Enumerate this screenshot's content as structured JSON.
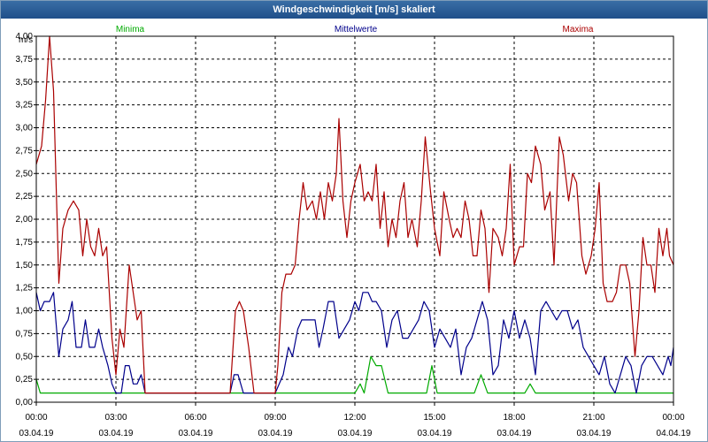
{
  "window": {
    "title": "Windgeschwindigkeit [m/s] skaliert"
  },
  "chart_data": {
    "type": "line",
    "title": "Windgeschwindigkeit [m/s] skaliert",
    "ylabel": "m/s",
    "ylim": [
      0,
      4
    ],
    "xlim": [
      0,
      24
    ],
    "grid": true,
    "yticks": [
      "0,00",
      "0,25",
      "0,50",
      "0,75",
      "1,00",
      "1,25",
      "1,50",
      "1,75",
      "2,00",
      "2,25",
      "2,50",
      "2,75",
      "3,00",
      "3,25",
      "3,50",
      "3,75",
      "4,00"
    ],
    "xticks": [
      {
        "time": "00:00",
        "date": "03.04.19"
      },
      {
        "time": "03:00",
        "date": "03.04.19"
      },
      {
        "time": "06:00",
        "date": "03.04.19"
      },
      {
        "time": "09:00",
        "date": "03.04.19"
      },
      {
        "time": "12:00",
        "date": "03.04.19"
      },
      {
        "time": "15:00",
        "date": "03.04.19"
      },
      {
        "time": "18:00",
        "date": "03.04.19"
      },
      {
        "time": "21:00",
        "date": "03.04.19"
      },
      {
        "time": "00:00",
        "date": "04.04.19"
      }
    ],
    "series": [
      {
        "name": "Minima",
        "color": "#00aa00",
        "points": [
          [
            0,
            0.25
          ],
          [
            0.15,
            0.1
          ],
          [
            12,
            0.1
          ],
          [
            12.2,
            0.2
          ],
          [
            12.35,
            0.1
          ],
          [
            12.6,
            0.5
          ],
          [
            12.8,
            0.4
          ],
          [
            13.0,
            0.4
          ],
          [
            13.25,
            0.1
          ],
          [
            14.7,
            0.1
          ],
          [
            14.9,
            0.4
          ],
          [
            15.1,
            0.1
          ],
          [
            16.5,
            0.1
          ],
          [
            16.75,
            0.3
          ],
          [
            17.0,
            0.1
          ],
          [
            18.4,
            0.1
          ],
          [
            18.6,
            0.2
          ],
          [
            18.8,
            0.1
          ],
          [
            24,
            0.1
          ]
        ]
      },
      {
        "name": "Mittelwerte",
        "color": "#00008b",
        "points": [
          [
            0,
            1.2
          ],
          [
            0.15,
            1.0
          ],
          [
            0.3,
            1.1
          ],
          [
            0.5,
            1.1
          ],
          [
            0.65,
            1.2
          ],
          [
            0.85,
            0.5
          ],
          [
            1.0,
            0.8
          ],
          [
            1.2,
            0.9
          ],
          [
            1.35,
            1.1
          ],
          [
            1.5,
            0.6
          ],
          [
            1.7,
            0.6
          ],
          [
            1.85,
            0.9
          ],
          [
            2.0,
            0.6
          ],
          [
            2.2,
            0.6
          ],
          [
            2.35,
            0.8
          ],
          [
            2.5,
            0.6
          ],
          [
            2.7,
            0.4
          ],
          [
            2.85,
            0.2
          ],
          [
            3.0,
            0.1
          ],
          [
            3.2,
            0.1
          ],
          [
            3.35,
            0.4
          ],
          [
            3.5,
            0.4
          ],
          [
            3.65,
            0.2
          ],
          [
            3.8,
            0.2
          ],
          [
            3.95,
            0.3
          ],
          [
            4.1,
            0.1
          ],
          [
            7.3,
            0.1
          ],
          [
            7.45,
            0.3
          ],
          [
            7.6,
            0.3
          ],
          [
            7.8,
            0.1
          ],
          [
            9.0,
            0.1
          ],
          [
            9.3,
            0.3
          ],
          [
            9.5,
            0.6
          ],
          [
            9.65,
            0.5
          ],
          [
            9.85,
            0.8
          ],
          [
            10.0,
            0.9
          ],
          [
            10.5,
            0.9
          ],
          [
            10.65,
            0.6
          ],
          [
            10.8,
            0.8
          ],
          [
            11.0,
            1.1
          ],
          [
            11.2,
            1.1
          ],
          [
            11.4,
            0.7
          ],
          [
            11.6,
            0.8
          ],
          [
            11.8,
            0.9
          ],
          [
            12.0,
            1.1
          ],
          [
            12.15,
            1.0
          ],
          [
            12.3,
            1.2
          ],
          [
            12.5,
            1.2
          ],
          [
            12.65,
            1.1
          ],
          [
            12.8,
            1.1
          ],
          [
            13.0,
            1.0
          ],
          [
            13.2,
            0.6
          ],
          [
            13.4,
            0.9
          ],
          [
            13.6,
            1.0
          ],
          [
            13.8,
            0.7
          ],
          [
            14.0,
            0.7
          ],
          [
            14.2,
            0.8
          ],
          [
            14.4,
            0.9
          ],
          [
            14.6,
            1.1
          ],
          [
            14.8,
            1.0
          ],
          [
            15.0,
            0.6
          ],
          [
            15.2,
            0.8
          ],
          [
            15.4,
            0.7
          ],
          [
            15.6,
            0.6
          ],
          [
            15.8,
            0.8
          ],
          [
            16.0,
            0.3
          ],
          [
            16.2,
            0.6
          ],
          [
            16.4,
            0.7
          ],
          [
            16.6,
            0.9
          ],
          [
            16.8,
            1.1
          ],
          [
            17.0,
            0.9
          ],
          [
            17.2,
            0.3
          ],
          [
            17.4,
            0.4
          ],
          [
            17.6,
            0.9
          ],
          [
            17.8,
            0.7
          ],
          [
            18.0,
            1.0
          ],
          [
            18.2,
            0.7
          ],
          [
            18.4,
            0.9
          ],
          [
            18.6,
            0.7
          ],
          [
            18.8,
            0.3
          ],
          [
            19.0,
            1.0
          ],
          [
            19.2,
            1.1
          ],
          [
            19.4,
            1.0
          ],
          [
            19.6,
            0.9
          ],
          [
            19.8,
            1.0
          ],
          [
            20.0,
            1.0
          ],
          [
            20.2,
            0.8
          ],
          [
            20.4,
            0.9
          ],
          [
            20.6,
            0.6
          ],
          [
            20.8,
            0.5
          ],
          [
            21.0,
            0.4
          ],
          [
            21.2,
            0.3
          ],
          [
            21.4,
            0.5
          ],
          [
            21.6,
            0.2
          ],
          [
            21.8,
            0.1
          ],
          [
            22.0,
            0.3
          ],
          [
            22.2,
            0.5
          ],
          [
            22.4,
            0.4
          ],
          [
            22.6,
            0.1
          ],
          [
            22.8,
            0.4
          ],
          [
            23.0,
            0.5
          ],
          [
            23.2,
            0.5
          ],
          [
            23.4,
            0.4
          ],
          [
            23.6,
            0.3
          ],
          [
            23.8,
            0.5
          ],
          [
            23.9,
            0.4
          ],
          [
            24.0,
            0.6
          ]
        ]
      },
      {
        "name": "Maxima",
        "color": "#aa0000",
        "points": [
          [
            0,
            2.6
          ],
          [
            0.2,
            2.8
          ],
          [
            0.35,
            3.3
          ],
          [
            0.5,
            4.0
          ],
          [
            0.65,
            3.4
          ],
          [
            0.85,
            1.3
          ],
          [
            1.0,
            1.9
          ],
          [
            1.2,
            2.1
          ],
          [
            1.4,
            2.2
          ],
          [
            1.6,
            2.1
          ],
          [
            1.75,
            1.6
          ],
          [
            1.9,
            2.0
          ],
          [
            2.05,
            1.7
          ],
          [
            2.2,
            1.6
          ],
          [
            2.35,
            1.9
          ],
          [
            2.5,
            1.6
          ],
          [
            2.65,
            1.7
          ],
          [
            2.85,
            0.7
          ],
          [
            3.0,
            0.3
          ],
          [
            3.15,
            0.8
          ],
          [
            3.3,
            0.6
          ],
          [
            3.5,
            1.5
          ],
          [
            3.65,
            1.2
          ],
          [
            3.8,
            0.9
          ],
          [
            3.95,
            1.0
          ],
          [
            4.1,
            0.1
          ],
          [
            7.3,
            0.1
          ],
          [
            7.5,
            1.0
          ],
          [
            7.65,
            1.1
          ],
          [
            7.8,
            1.0
          ],
          [
            8.0,
            0.6
          ],
          [
            8.2,
            0.1
          ],
          [
            9.0,
            0.1
          ],
          [
            9.1,
            0.4
          ],
          [
            9.25,
            1.2
          ],
          [
            9.4,
            1.4
          ],
          [
            9.6,
            1.4
          ],
          [
            9.75,
            1.5
          ],
          [
            9.9,
            2.0
          ],
          [
            10.05,
            2.4
          ],
          [
            10.2,
            2.1
          ],
          [
            10.4,
            2.2
          ],
          [
            10.55,
            2.0
          ],
          [
            10.7,
            2.3
          ],
          [
            10.85,
            2.0
          ],
          [
            11.0,
            2.4
          ],
          [
            11.15,
            2.2
          ],
          [
            11.3,
            2.5
          ],
          [
            11.4,
            3.1
          ],
          [
            11.55,
            2.2
          ],
          [
            11.7,
            1.8
          ],
          [
            11.85,
            2.2
          ],
          [
            12.0,
            2.4
          ],
          [
            12.2,
            2.6
          ],
          [
            12.35,
            2.2
          ],
          [
            12.5,
            2.3
          ],
          [
            12.65,
            2.2
          ],
          [
            12.8,
            2.6
          ],
          [
            12.95,
            1.9
          ],
          [
            13.1,
            2.3
          ],
          [
            13.25,
            1.7
          ],
          [
            13.4,
            2.0
          ],
          [
            13.55,
            1.8
          ],
          [
            13.7,
            2.2
          ],
          [
            13.85,
            2.4
          ],
          [
            14.0,
            1.8
          ],
          [
            14.15,
            2.0
          ],
          [
            14.35,
            1.7
          ],
          [
            14.5,
            2.2
          ],
          [
            14.65,
            2.9
          ],
          [
            14.85,
            2.3
          ],
          [
            15.0,
            1.9
          ],
          [
            15.2,
            1.6
          ],
          [
            15.35,
            2.3
          ],
          [
            15.55,
            2.0
          ],
          [
            15.7,
            1.8
          ],
          [
            15.85,
            1.9
          ],
          [
            16.0,
            1.8
          ],
          [
            16.15,
            2.2
          ],
          [
            16.3,
            2.0
          ],
          [
            16.45,
            1.6
          ],
          [
            16.6,
            1.6
          ],
          [
            16.75,
            2.1
          ],
          [
            16.9,
            1.9
          ],
          [
            17.05,
            1.2
          ],
          [
            17.2,
            1.9
          ],
          [
            17.4,
            1.8
          ],
          [
            17.55,
            1.6
          ],
          [
            17.7,
            1.9
          ],
          [
            17.85,
            2.6
          ],
          [
            18.0,
            1.5
          ],
          [
            18.2,
            1.7
          ],
          [
            18.35,
            1.7
          ],
          [
            18.5,
            2.5
          ],
          [
            18.65,
            2.4
          ],
          [
            18.8,
            2.8
          ],
          [
            19.0,
            2.6
          ],
          [
            19.15,
            2.1
          ],
          [
            19.35,
            2.3
          ],
          [
            19.5,
            1.5
          ],
          [
            19.7,
            2.9
          ],
          [
            19.85,
            2.7
          ],
          [
            20.05,
            2.2
          ],
          [
            20.2,
            2.5
          ],
          [
            20.35,
            2.4
          ],
          [
            20.55,
            1.6
          ],
          [
            20.7,
            1.4
          ],
          [
            20.9,
            1.6
          ],
          [
            21.05,
            1.9
          ],
          [
            21.2,
            2.4
          ],
          [
            21.35,
            1.3
          ],
          [
            21.5,
            1.1
          ],
          [
            21.7,
            1.1
          ],
          [
            21.85,
            1.2
          ],
          [
            22.0,
            1.5
          ],
          [
            22.2,
            1.5
          ],
          [
            22.35,
            1.3
          ],
          [
            22.55,
            0.5
          ],
          [
            22.7,
            1.0
          ],
          [
            22.85,
            1.8
          ],
          [
            23.0,
            1.5
          ],
          [
            23.15,
            1.5
          ],
          [
            23.3,
            1.2
          ],
          [
            23.45,
            1.9
          ],
          [
            23.6,
            1.6
          ],
          [
            23.75,
            1.9
          ],
          [
            23.85,
            1.6
          ],
          [
            24.0,
            1.5
          ]
        ]
      }
    ]
  }
}
